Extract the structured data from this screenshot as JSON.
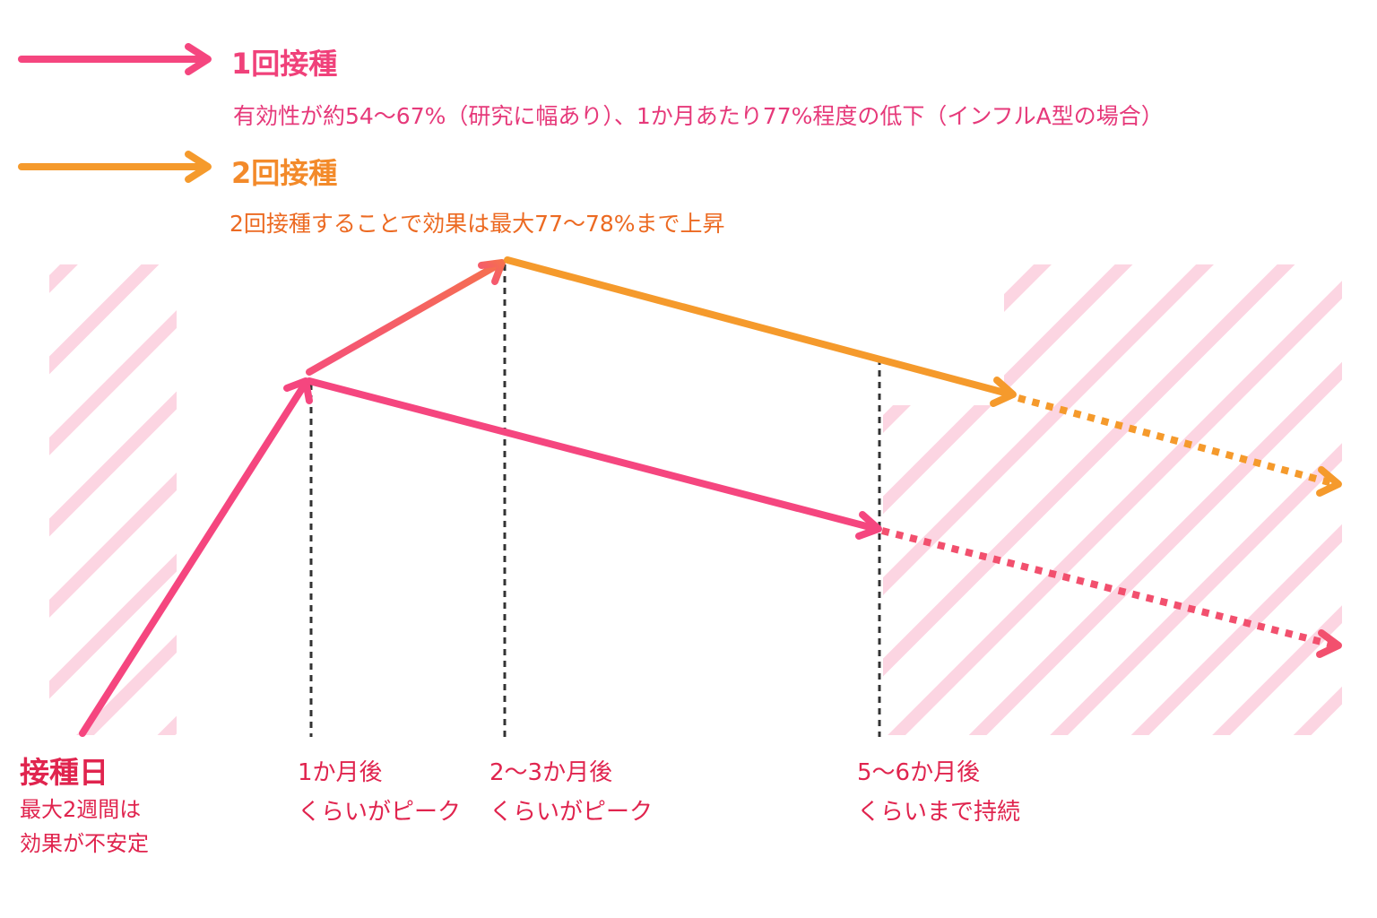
{
  "colors": {
    "pink": "#f5467f",
    "orange": "#f59a2c",
    "hatch": "#fcd5e2",
    "label": "#e0244e",
    "dashed": "#333333"
  },
  "legend": [
    {
      "title": "1回接種",
      "description": "有効性が約54〜67%（研究に幅あり）、1か月あたり77%程度の低下（インフルA型の場合）"
    },
    {
      "title": "2回接種",
      "description": "2回接種することで効果は最大77〜78%まで上昇"
    }
  ],
  "timeline": [
    {
      "title": "接種日",
      "lines": [
        "最大2週間は",
        "効果が不安定"
      ]
    },
    {
      "title": "1か月後",
      "lines": [
        "くらいがピーク"
      ]
    },
    {
      "title": "2〜3か月後",
      "lines": [
        "くらいがピーク"
      ]
    },
    {
      "title": "5〜6か月後",
      "lines": [
        "くらいまで持続"
      ]
    }
  ]
}
